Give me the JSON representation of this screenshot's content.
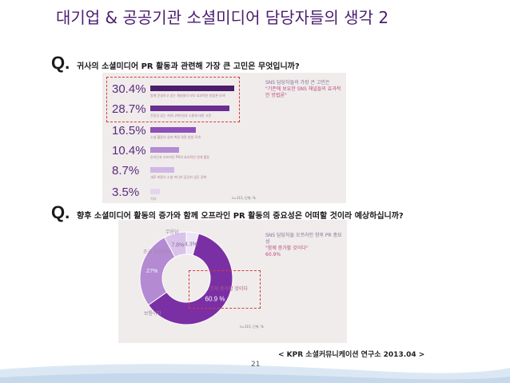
{
  "title": "대기업 & 공공기관 소셜미디어 담당자들의 생각 2",
  "q1": {
    "mark": "Q.",
    "question": "귀사의 소셜미디어 PR 활동과 관련해 가장 큰 고민은 무엇입니까?",
    "items": [
      {
        "value": "30.4%",
        "sub": "함께 운영하고 있는 채널들의 보다 효과적인 방법론 모색",
        "fraction": 0.304
      },
      {
        "value": "28.7%",
        "sub": "진정성 있는 커뮤니케이션과 소통에 대한 고민",
        "fraction": 0.287
      },
      {
        "value": "16.5%",
        "sub": "소셜 활동의 성과 측정 정량 방법 모색",
        "fraction": 0.165
      },
      {
        "value": "10.4%",
        "sub": "온라인과 오프라인 PR의 효과적인 연계 활동",
        "fraction": 0.104
      },
      {
        "value": "8.7%",
        "sub": "새로 비중이 소셜 미디어 담당자 업무 강화",
        "fraction": 0.087
      },
      {
        "value": "3.5%",
        "sub": "기타",
        "fraction": 0.035
      }
    ],
    "callout_title": "SNS 담당자들의 가장 큰 고민은",
    "callout_highlight": "\"기존에 보유한 SNS 채널들의 효과적인 방법론\"",
    "note": "n=115, 단위: %"
  },
  "q2": {
    "mark": "Q.",
    "question": "향후 소셜미디어 활동의 증가와 함께 오프라인 PR 활동의 중요성은 어떠할 것이라 예상하십니까?",
    "slices": [
      {
        "label": "크게 증가할 것이다",
        "value": 60.9,
        "display": "60.9 %",
        "color": "#7b2fa5"
      },
      {
        "label": "보통이다",
        "value": 27.0,
        "display": "27%",
        "color": "#b48ad2"
      },
      {
        "label": "조금 감소하다",
        "value": 7.8,
        "display": "7.8%",
        "color": "#d9c3ea"
      },
      {
        "label": "무응답",
        "value": 4.3,
        "display": "4.3%",
        "color": "#efe4f6"
      }
    ],
    "callout_title": "SNS 담당자들 오프라인 향후 PR 중요성",
    "callout_highlight": "\"함께 증가할 것이다\"",
    "callout_value": "60.9%",
    "note": "n=115, 단위: %"
  },
  "footer": {
    "source": "< KPR 소셜커뮤니케이션 연구소 2013.04 >",
    "page": "21"
  }
}
